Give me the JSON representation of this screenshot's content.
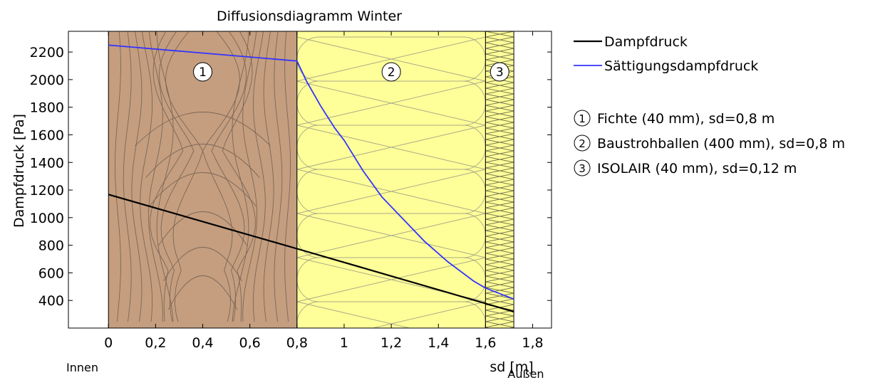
{
  "chart_data": {
    "type": "line",
    "title": "Diffusionsdiagramm Winter",
    "xlabel": "sd [m]",
    "ylabel": "Dampfdruck [Pa]",
    "xlim": [
      -0.17,
      1.88
    ],
    "ylim": [
      200,
      2350
    ],
    "x_ticks": [
      0,
      0.2,
      0.4,
      0.6,
      0.8,
      1.0,
      1.2,
      1.4,
      1.6,
      1.8
    ],
    "x_tick_labels": [
      "0",
      "0,2",
      "0,4",
      "0,6",
      "0,8",
      "1",
      "1,2",
      "1,4",
      "1,6",
      "1,8"
    ],
    "y_ticks": [
      400,
      600,
      800,
      1000,
      1200,
      1400,
      1600,
      1800,
      2000,
      2200
    ],
    "y_tick_labels": [
      "400",
      "600",
      "800",
      "1000",
      "1200",
      "1400",
      "1600",
      "1800",
      "2000",
      "2200"
    ],
    "inside_label": "Innen",
    "outside_label": "Außen",
    "grid": false,
    "legend_position": "right",
    "series": [
      {
        "name": "Dampfdruck",
        "color": "#000000",
        "x": [
          0,
          0.8,
          1.6,
          1.72
        ],
        "y": [
          1168,
          775,
          378,
          318
        ]
      },
      {
        "name": "Sättigungsdampfdruck",
        "color": "#3333ff",
        "x": [
          0,
          0.8,
          0.84,
          0.9,
          0.96,
          1.0,
          1.08,
          1.16,
          1.25,
          1.34,
          1.44,
          1.55,
          1.6,
          1.72
        ],
        "y": [
          2250,
          2135,
          1990,
          1810,
          1650,
          1560,
          1340,
          1150,
          990,
          830,
          680,
          540,
          490,
          410
        ]
      }
    ],
    "layers": [
      {
        "number": "1",
        "label": "Fichte (40 mm), sd=0,8 m",
        "sd_start": 0,
        "sd_end": 0.8,
        "fill": "#c49e7f",
        "pattern": "wood"
      },
      {
        "number": "2",
        "label": "Baustrohballen (400 mm), sd=0,8 m",
        "sd_start": 0.8,
        "sd_end": 1.6,
        "fill": "#ffff99",
        "pattern": "insulation"
      },
      {
        "number": "3",
        "label": "ISOLAIR (40 mm), sd=0,12 m",
        "sd_start": 1.6,
        "sd_end": 1.72,
        "fill": "#ffff99",
        "pattern": "crosshatch"
      }
    ]
  }
}
